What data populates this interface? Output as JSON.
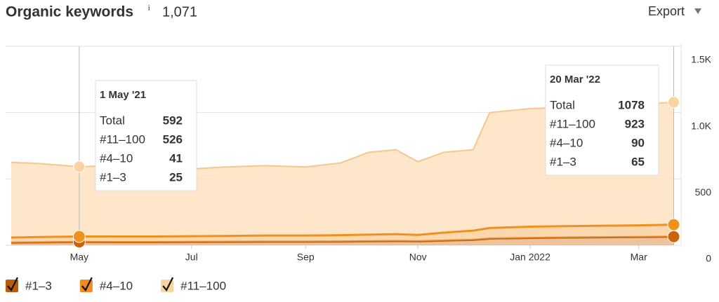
{
  "header": {
    "title": "Organic keywords",
    "info": "i",
    "count": "1,071",
    "export": "Export"
  },
  "chart_data": {
    "type": "stacked-area",
    "x": [
      "2021-03-25",
      "2021-04-10",
      "2021-05-01",
      "2021-05-20",
      "2021-06-10",
      "2021-07-01",
      "2021-07-20",
      "2021-08-10",
      "2021-09-01",
      "2021-09-20",
      "2021-10-05",
      "2021-10-20",
      "2021-11-01",
      "2021-11-15",
      "2021-12-01",
      "2021-12-10",
      "2022-01-01",
      "2022-01-20",
      "2022-02-10",
      "2022-03-01",
      "2022-03-20"
    ],
    "series": [
      {
        "name": "#1–3",
        "color": "#c8650b",
        "fill": "#e0914a",
        "box": "#b85c0b",
        "values": [
          20,
          22,
          25,
          24,
          24,
          25,
          26,
          27,
          27,
          28,
          30,
          32,
          30,
          35,
          40,
          50,
          55,
          58,
          60,
          62,
          65
        ]
      },
      {
        "name": "#4–10",
        "color": "#f0901f",
        "fill": "#f7b66a",
        "box": "#f08c1e",
        "values": [
          38,
          40,
          41,
          42,
          42,
          43,
          44,
          46,
          46,
          48,
          50,
          52,
          48,
          60,
          70,
          80,
          85,
          86,
          87,
          88,
          90
        ]
      },
      {
        "name": "#11–100",
        "color": "#f6c68f",
        "fill": "#fde3c4",
        "box": "#fbd3a0",
        "values": [
          567,
          553,
          526,
          534,
          519,
          507,
          520,
          527,
          517,
          544,
          620,
          636,
          552,
          605,
          610,
          870,
          890,
          896,
          898,
          910,
          923
        ]
      }
    ],
    "xlim": [
      "2021-03-22",
      "2022-03-24"
    ],
    "xticks": [
      {
        "value": "2021-05-01",
        "label": "May"
      },
      {
        "value": "2021-07-01",
        "label": "Jul"
      },
      {
        "value": "2021-09-01",
        "label": "Sep"
      },
      {
        "value": "2021-11-01",
        "label": "Nov"
      },
      {
        "value": "2022-01-01",
        "label": "Jan 2022"
      },
      {
        "value": "2022-03-01",
        "label": "Mar"
      }
    ],
    "ylim": [
      0,
      1500
    ],
    "yticks": [
      0,
      500,
      {
        "value": 1000,
        "label": "1.0K"
      },
      {
        "value": 1500,
        "label": "1.5K"
      }
    ],
    "grid": true,
    "tooltips": [
      {
        "date": "1 May '21",
        "total_label": "Total",
        "total": 592
      },
      {
        "date": "20 Mar '22",
        "total_label": "Total",
        "total": 1078
      }
    ]
  }
}
